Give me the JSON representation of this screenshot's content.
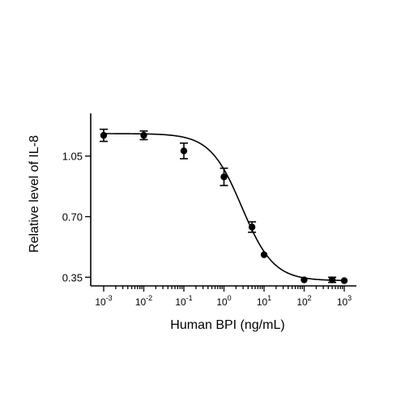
{
  "chart_data": {
    "type": "scatter",
    "title": "",
    "xlabel": "Human BPI (ng/mL)",
    "ylabel": "Relative level of IL-8",
    "x_scale": "log",
    "xlim": [
      0.001,
      1000
    ],
    "ylim": [
      0.3,
      1.25
    ],
    "x_ticks": [
      {
        "value": 0.001,
        "base": "10",
        "exp": "-3"
      },
      {
        "value": 0.01,
        "base": "10",
        "exp": "-2"
      },
      {
        "value": 0.1,
        "base": "10",
        "exp": "-1"
      },
      {
        "value": 1,
        "base": "10",
        "exp": "0"
      },
      {
        "value": 10,
        "base": "10",
        "exp": "1"
      },
      {
        "value": 100,
        "base": "10",
        "exp": "2"
      },
      {
        "value": 1000,
        "base": "10",
        "exp": "3"
      }
    ],
    "y_ticks": [
      {
        "value": 0.35,
        "label": "0.35"
      },
      {
        "value": 0.7,
        "label": "0.70"
      },
      {
        "value": 1.05,
        "label": "1.05"
      }
    ],
    "grid": false,
    "legend": "none",
    "series": [
      {
        "points": [
          {
            "x": 0.001,
            "y": 1.17,
            "err": 0.035
          },
          {
            "x": 0.01,
            "y": 1.17,
            "err": 0.025
          },
          {
            "x": 0.1,
            "y": 1.08,
            "err": 0.045
          },
          {
            "x": 1,
            "y": 0.93,
            "err": 0.05
          },
          {
            "x": 5,
            "y": 0.64,
            "err": 0.03
          },
          {
            "x": 10,
            "y": 0.48,
            "err": 0.0
          },
          {
            "x": 100,
            "y": 0.335,
            "err": 0.0
          },
          {
            "x": 500,
            "y": 0.335,
            "err": 0.015
          },
          {
            "x": 1000,
            "y": 0.33,
            "err": 0.0
          }
        ],
        "fit": {
          "model": "4PL",
          "bottom": 0.33,
          "top": 1.18,
          "ec50": 2.8,
          "hill": 1.1
        }
      }
    ]
  }
}
